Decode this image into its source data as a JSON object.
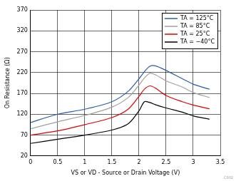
{
  "chart_data": {
    "type": "line",
    "x_label": "VS or VD - Source or Drain Voltage (V)",
    "y_label": "On Resistance (Ω)",
    "annotation": "C002",
    "x": [
      0,
      0.5,
      1,
      1.5,
      1.8,
      2,
      2.1,
      2.2,
      2.3,
      2.5,
      2.8,
      3,
      3.3
    ],
    "series": [
      {
        "name": "TA = 125°C",
        "color": "#2a5caa",
        "values": [
          100,
          120,
          132,
          150,
          175,
          205,
          222,
          235,
          236,
          225,
          205,
          192,
          180
        ]
      },
      {
        "name": "TA = 85°C",
        "color": "#a0a0a0",
        "values": [
          85,
          102,
          117,
          137,
          160,
          190,
          207,
          218,
          215,
          200,
          185,
          172,
          160
        ]
      },
      {
        "name": "TA = 25°C",
        "color": "#e00000",
        "values": [
          70,
          80,
          95,
          112,
          132,
          163,
          180,
          188,
          183,
          165,
          150,
          142,
          133
        ]
      },
      {
        "name": "TA = −40°C",
        "color": "#000000",
        "values": [
          50,
          60,
          70,
          82,
          97,
          128,
          150,
          148,
          143,
          135,
          125,
          116,
          108
        ]
      }
    ],
    "xlim": [
      0,
      3.5
    ],
    "xticks": [
      0,
      0.5,
      1,
      1.5,
      2,
      2.5,
      3,
      3.5
    ],
    "ylim": [
      20,
      370
    ],
    "yticks": [
      20,
      70,
      120,
      170,
      220,
      270,
      320,
      370
    ],
    "grid": true,
    "legend": "upper right"
  }
}
